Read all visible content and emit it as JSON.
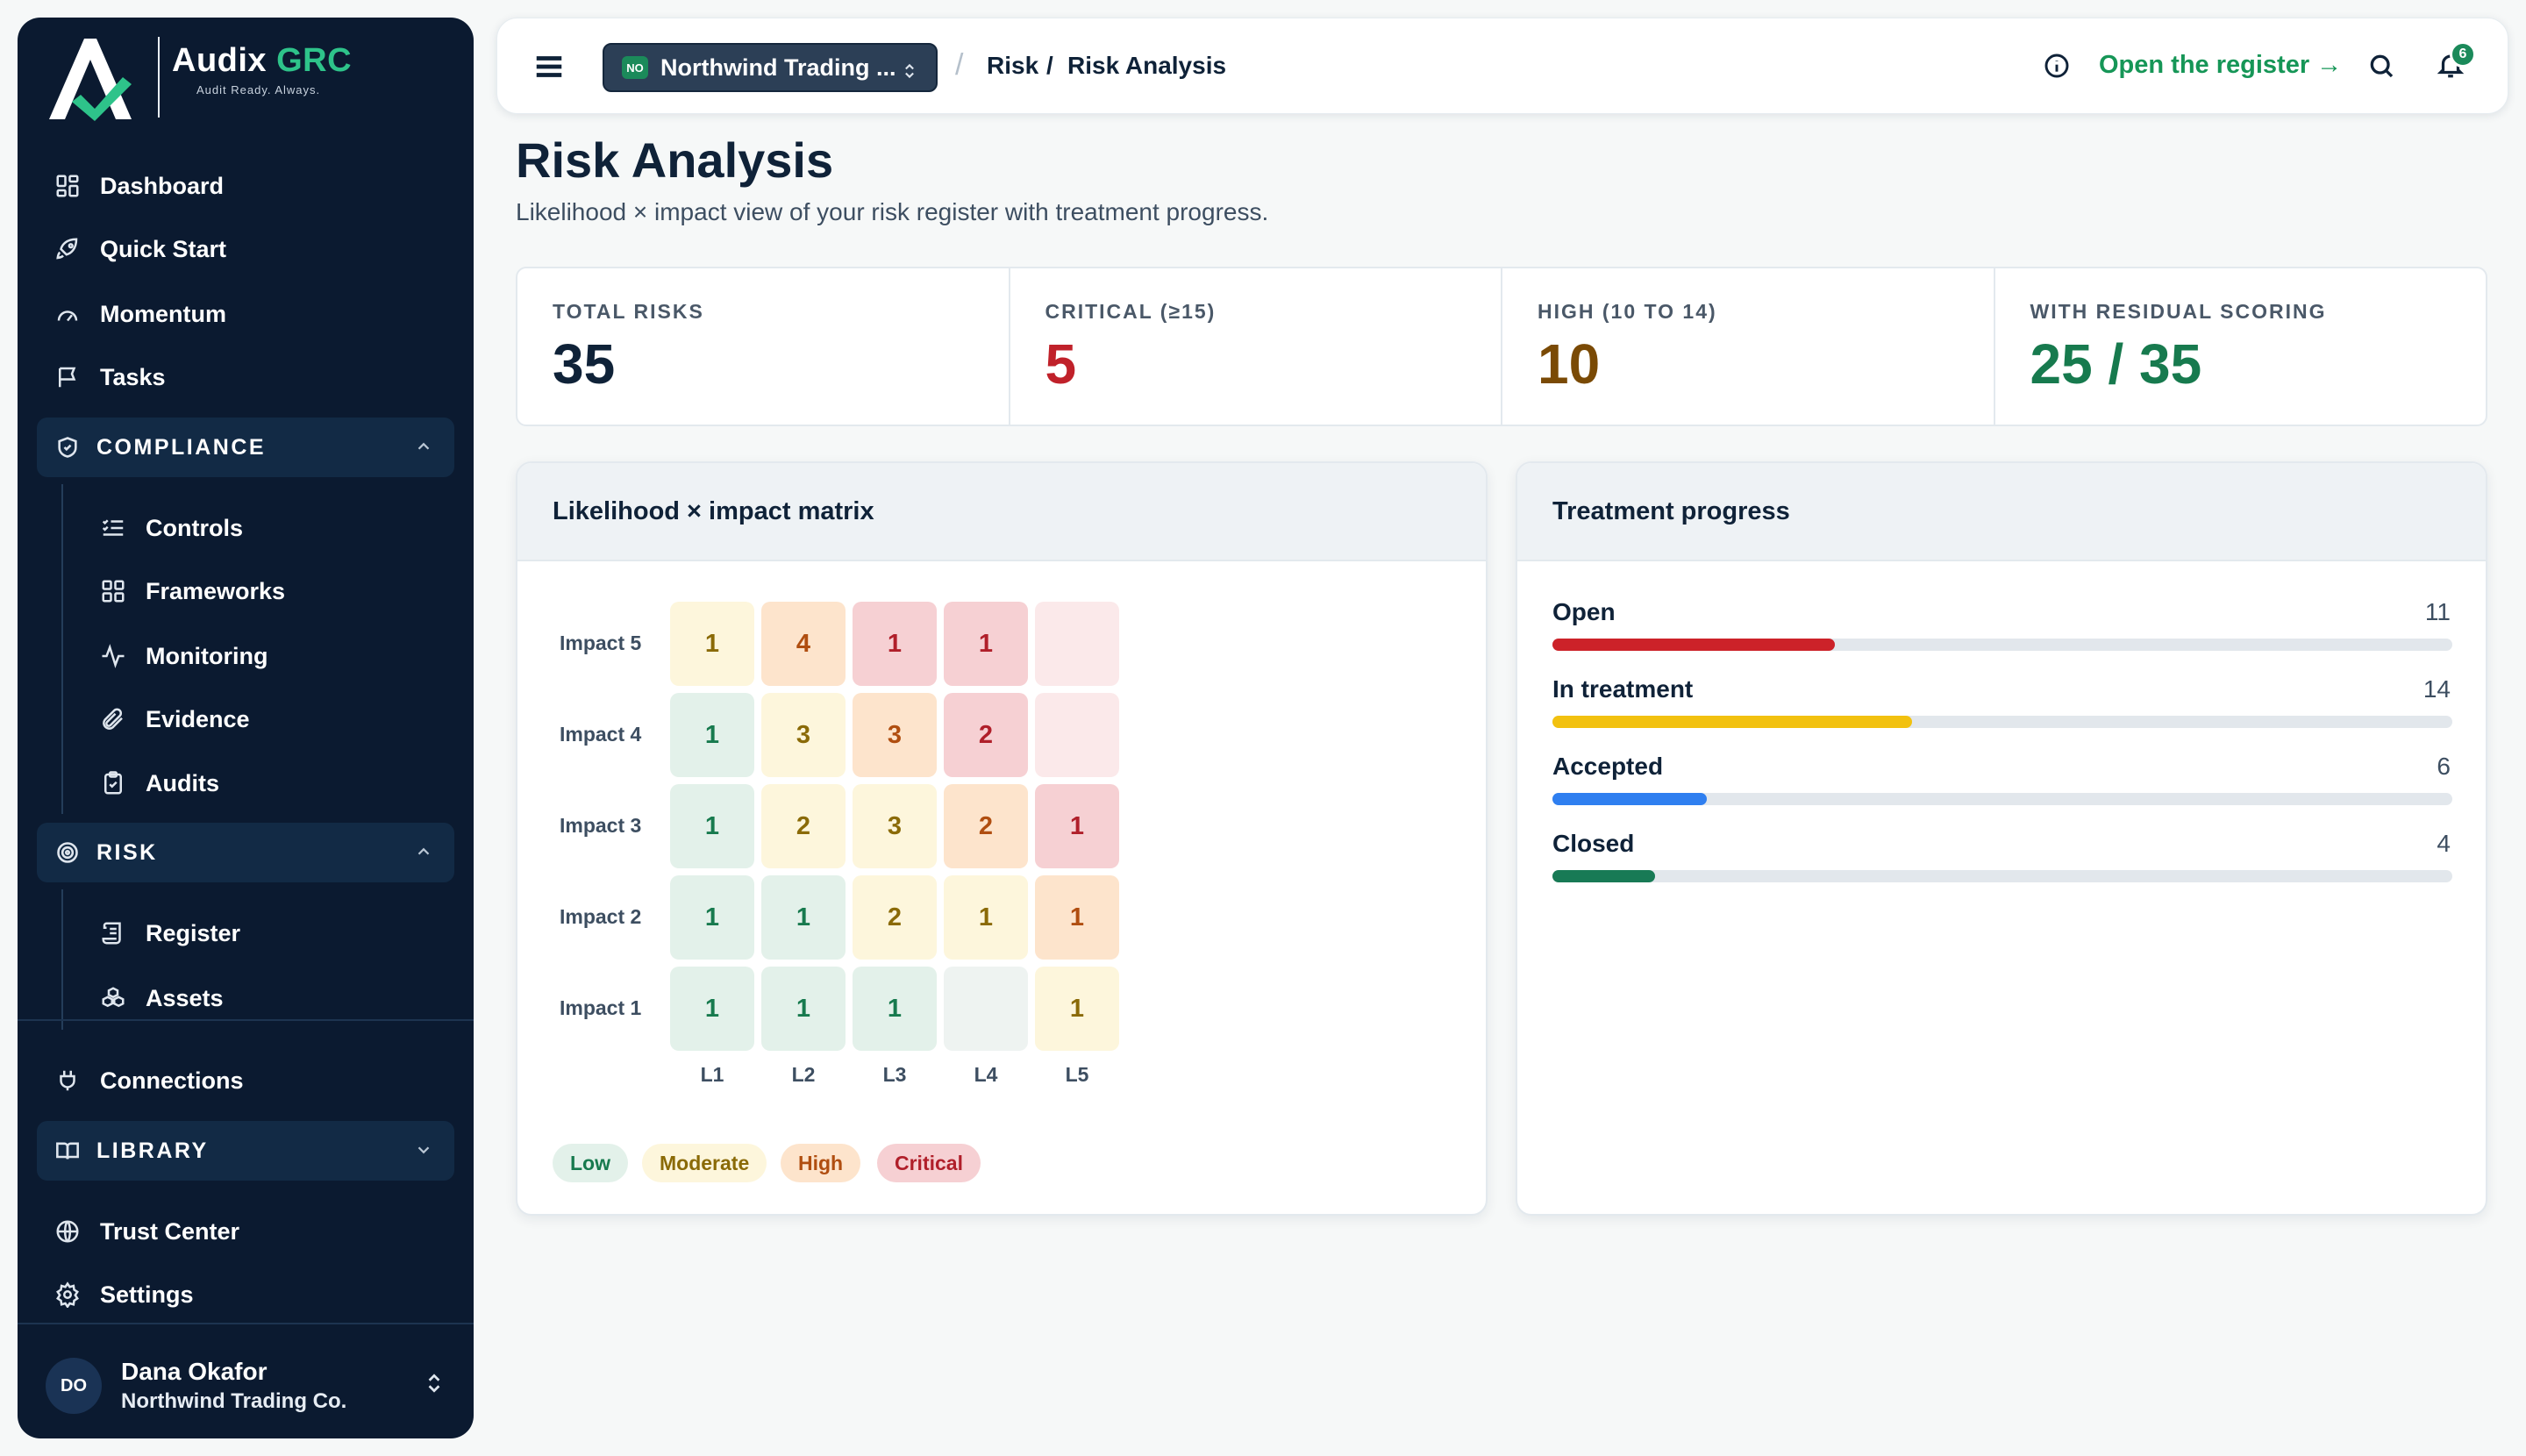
{
  "brand": {
    "name_main": "Audix",
    "name_accent": "GRC",
    "tagline": "Audit Ready. Always."
  },
  "sidebar": {
    "top_items": [
      {
        "label": "Dashboard",
        "icon": "grid-icon"
      },
      {
        "label": "Quick Start",
        "icon": "rocket-icon"
      },
      {
        "label": "Momentum",
        "icon": "gauge-icon"
      },
      {
        "label": "Tasks",
        "icon": "flag-icon"
      }
    ],
    "compliance": {
      "label": "COMPLIANCE",
      "items": [
        {
          "label": "Controls",
          "icon": "list-check-icon"
        },
        {
          "label": "Frameworks",
          "icon": "grid-icon"
        },
        {
          "label": "Monitoring",
          "icon": "activity-icon"
        },
        {
          "label": "Evidence",
          "icon": "paperclip-icon"
        },
        {
          "label": "Audits",
          "icon": "clipboard-check-icon"
        }
      ]
    },
    "risk": {
      "label": "RISK",
      "items": [
        {
          "label": "Register",
          "icon": "scroll-icon"
        },
        {
          "label": "Assets",
          "icon": "boxes-icon"
        }
      ]
    },
    "connections": {
      "label": "Connections",
      "icon": "plug-icon"
    },
    "library": {
      "label": "LIBRARY"
    },
    "bottom_items": [
      {
        "label": "Trust Center",
        "icon": "globe-icon"
      },
      {
        "label": "Settings",
        "icon": "gear-icon"
      }
    ],
    "user": {
      "initials": "DO",
      "name": "Dana Okafor",
      "org": "Northwind Trading Co."
    }
  },
  "topbar": {
    "org_badge": "NO",
    "org_name": "Northwind Trading ...",
    "breadcrumb": [
      "Risk",
      "Risk Analysis"
    ],
    "open_register": "Open the register →",
    "notification_count": "6"
  },
  "page": {
    "title": "Risk Analysis",
    "subtitle": "Likelihood × impact view of your risk register with treatment progress."
  },
  "stats": [
    {
      "label": "TOTAL RISKS",
      "value": "35",
      "color": "#0f2238"
    },
    {
      "label": "CRITICAL (≥15)",
      "value": "5",
      "color": "#c0212a"
    },
    {
      "label": "HIGH (10 TO 14)",
      "value": "10",
      "color": "#7a4a05"
    },
    {
      "label": "WITH RESIDUAL SCORING",
      "value": "25 / 35",
      "color": "#177a4e"
    }
  ],
  "matrix": {
    "title": "Likelihood × impact matrix",
    "row_labels": [
      "Impact 5",
      "Impact 4",
      "Impact 3",
      "Impact 2",
      "Impact 1"
    ],
    "col_labels": [
      "L1",
      "L2",
      "L3",
      "L4",
      "L5"
    ],
    "cells": [
      [
        {
          "v": "1",
          "lvl": "mod"
        },
        {
          "v": "4",
          "lvl": "high"
        },
        {
          "v": "1",
          "lvl": "crit"
        },
        {
          "v": "1",
          "lvl": "crit"
        },
        {
          "v": "",
          "lvl": "crit-empty"
        }
      ],
      [
        {
          "v": "1",
          "lvl": "low"
        },
        {
          "v": "3",
          "lvl": "mod"
        },
        {
          "v": "3",
          "lvl": "high"
        },
        {
          "v": "2",
          "lvl": "crit"
        },
        {
          "v": "",
          "lvl": "crit-empty"
        }
      ],
      [
        {
          "v": "1",
          "lvl": "low"
        },
        {
          "v": "2",
          "lvl": "mod"
        },
        {
          "v": "3",
          "lvl": "mod"
        },
        {
          "v": "2",
          "lvl": "high"
        },
        {
          "v": "1",
          "lvl": "crit"
        }
      ],
      [
        {
          "v": "1",
          "lvl": "low"
        },
        {
          "v": "1",
          "lvl": "low"
        },
        {
          "v": "2",
          "lvl": "mod"
        },
        {
          "v": "1",
          "lvl": "mod"
        },
        {
          "v": "1",
          "lvl": "high"
        }
      ],
      [
        {
          "v": "1",
          "lvl": "low"
        },
        {
          "v": "1",
          "lvl": "low"
        },
        {
          "v": "1",
          "lvl": "low"
        },
        {
          "v": "",
          "lvl": "low-empty"
        },
        {
          "v": "1",
          "lvl": "mod"
        }
      ]
    ],
    "legend": [
      "Low",
      "Moderate",
      "High",
      "Critical"
    ]
  },
  "treatment": {
    "title": "Treatment progress",
    "rows": [
      {
        "label": "Open",
        "count": 11,
        "total": 35,
        "color": "#cc2229"
      },
      {
        "label": "In treatment",
        "count": 14,
        "total": 35,
        "color": "#f2c10f"
      },
      {
        "label": "Accepted",
        "count": 6,
        "total": 35,
        "color": "#2f7ff0"
      },
      {
        "label": "Closed",
        "count": 4,
        "total": 35,
        "color": "#187a55"
      }
    ]
  }
}
